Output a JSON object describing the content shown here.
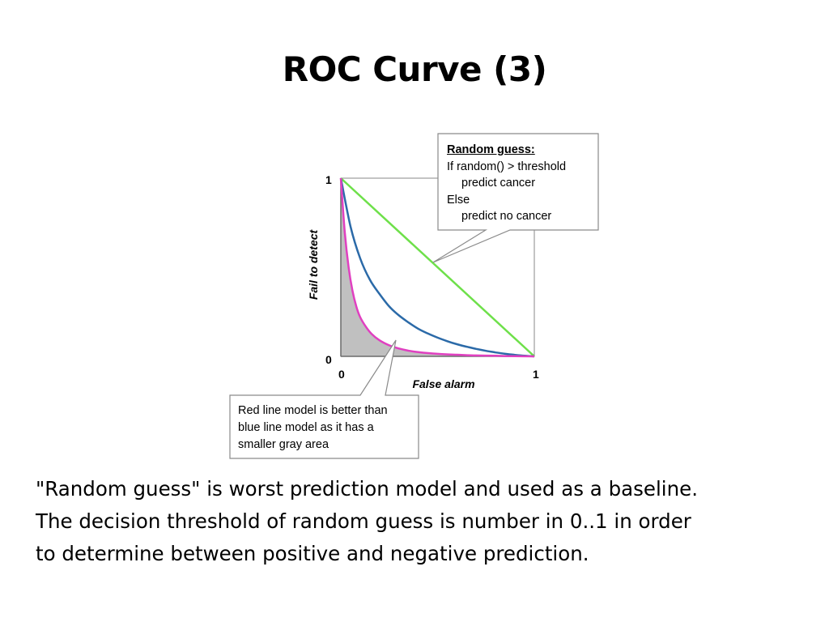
{
  "slide": {
    "title": "ROC Curve (3)",
    "body_lines": [
      "\"Random guess\" is worst prediction model and used as a baseline.",
      "The decision threshold of random guess is number in 0..1 in order",
      "to determine between positive and negative prediction."
    ]
  },
  "chart_data": {
    "type": "line",
    "title": "",
    "xlabel": "False alarm",
    "ylabel": "Fail to detect",
    "xlim": [
      0,
      1
    ],
    "ylim": [
      0,
      1
    ],
    "x_ticks": [
      "0",
      "1"
    ],
    "y_ticks": [
      "0",
      "1"
    ],
    "grid": false,
    "shaded_area_under": "red-curve",
    "colors": {
      "green": "#6ee04a",
      "blue": "#2b6aa8",
      "red": "#e040c0",
      "shade": "#c0c0c0"
    },
    "series": [
      {
        "key": "green",
        "x": [
          0,
          1
        ],
        "y": [
          1,
          0
        ]
      },
      {
        "key": "blue",
        "x": [
          0,
          0.05,
          0.1,
          0.15,
          0.2,
          0.25,
          0.3,
          0.35,
          0.4,
          0.45,
          0.5,
          0.55,
          0.6,
          0.65,
          0.7,
          0.75,
          0.8,
          0.85,
          0.9,
          0.95,
          1
        ],
        "y": [
          1,
          0.73,
          0.55,
          0.43,
          0.35,
          0.28,
          0.23,
          0.19,
          0.155,
          0.128,
          0.105,
          0.085,
          0.068,
          0.054,
          0.042,
          0.031,
          0.022,
          0.014,
          0.008,
          0.003,
          0
        ]
      },
      {
        "key": "red",
        "x": [
          0,
          0.02,
          0.04,
          0.06,
          0.08,
          0.1,
          0.13,
          0.16,
          0.2,
          0.25,
          0.3,
          0.35,
          0.4,
          0.5,
          0.6,
          0.7,
          0.8,
          0.9,
          1
        ],
        "y": [
          1,
          0.7,
          0.5,
          0.37,
          0.28,
          0.22,
          0.165,
          0.125,
          0.09,
          0.062,
          0.044,
          0.032,
          0.024,
          0.014,
          0.009,
          0.005,
          0.003,
          0.001,
          0
        ]
      }
    ],
    "annotations": [
      {
        "target": "green",
        "heading": "Random guess:",
        "lines": [
          "If random() > threshold",
          "predict cancer",
          "Else",
          "predict no cancer"
        ]
      },
      {
        "target": "shaded-area",
        "lines": [
          "Red line model is better than",
          "blue line model as it has a",
          "smaller gray area"
        ]
      }
    ]
  }
}
